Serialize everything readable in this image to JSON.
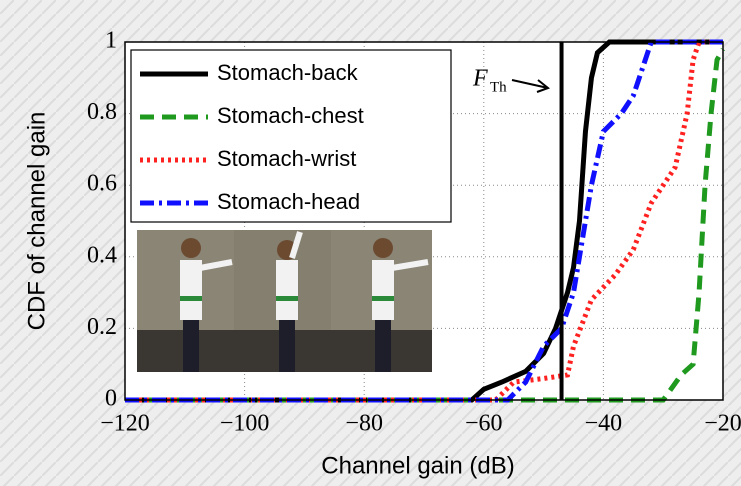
{
  "chart_data": {
    "type": "line",
    "ylabel": "CDF of channel gain",
    "xlabel": "Channel gain (dB)",
    "xlim": [
      -120,
      -20
    ],
    "ylim": [
      0,
      1
    ],
    "xticks": [
      {
        "value": -120,
        "label": "−120"
      },
      {
        "value": -100,
        "label": "−100"
      },
      {
        "value": -80,
        "label": "−80"
      },
      {
        "value": -60,
        "label": "−60"
      },
      {
        "value": -40,
        "label": "−40"
      },
      {
        "value": -20,
        "label": "−20"
      }
    ],
    "yticks": [
      0,
      0.2,
      0.4,
      0.6,
      0.8,
      1
    ],
    "grid": true,
    "legend": "upper left",
    "threshold": {
      "value": -47,
      "label": "F",
      "subscript": "Th"
    },
    "series": [
      {
        "name": "Stomach-back",
        "color": "#000000",
        "linestyle": "solid",
        "x": [
          -120,
          -62,
          -60,
          -57,
          -53,
          -50,
          -48,
          -46,
          -45,
          -44,
          -43,
          -42,
          -41,
          -39,
          -20
        ],
        "values": [
          0,
          0,
          0.03,
          0.05,
          0.08,
          0.13,
          0.2,
          0.3,
          0.37,
          0.5,
          0.75,
          0.9,
          0.97,
          1,
          1
        ]
      },
      {
        "name": "Stomach-chest",
        "color": "#1f9a1f",
        "linestyle": "dashed",
        "x": [
          -120,
          -30,
          -27,
          -25,
          -24,
          -23,
          -22,
          -21,
          -20
        ],
        "values": [
          0,
          0,
          0.07,
          0.1,
          0.3,
          0.6,
          0.8,
          0.95,
          0.98
        ]
      },
      {
        "name": "Stomach-wrist",
        "color": "#ff2020",
        "linestyle": "dotted",
        "x": [
          -120,
          -58,
          -55,
          -50,
          -46,
          -45,
          -42,
          -38,
          -35,
          -32,
          -30,
          -28,
          -26,
          -25,
          -24,
          -20
        ],
        "values": [
          0,
          0,
          0.05,
          0.06,
          0.07,
          0.15,
          0.28,
          0.35,
          0.42,
          0.55,
          0.6,
          0.65,
          0.8,
          0.95,
          1,
          1
        ]
      },
      {
        "name": "Stomach-head",
        "color": "#1010ff",
        "linestyle": "dashdot",
        "x": [
          -120,
          -56,
          -53,
          -50,
          -47,
          -45,
          -44,
          -42,
          -40,
          -37,
          -35,
          -33,
          -32,
          -20
        ],
        "values": [
          0,
          0,
          0.05,
          0.15,
          0.2,
          0.3,
          0.4,
          0.6,
          0.75,
          0.8,
          0.85,
          0.95,
          1,
          1
        ]
      }
    ]
  }
}
